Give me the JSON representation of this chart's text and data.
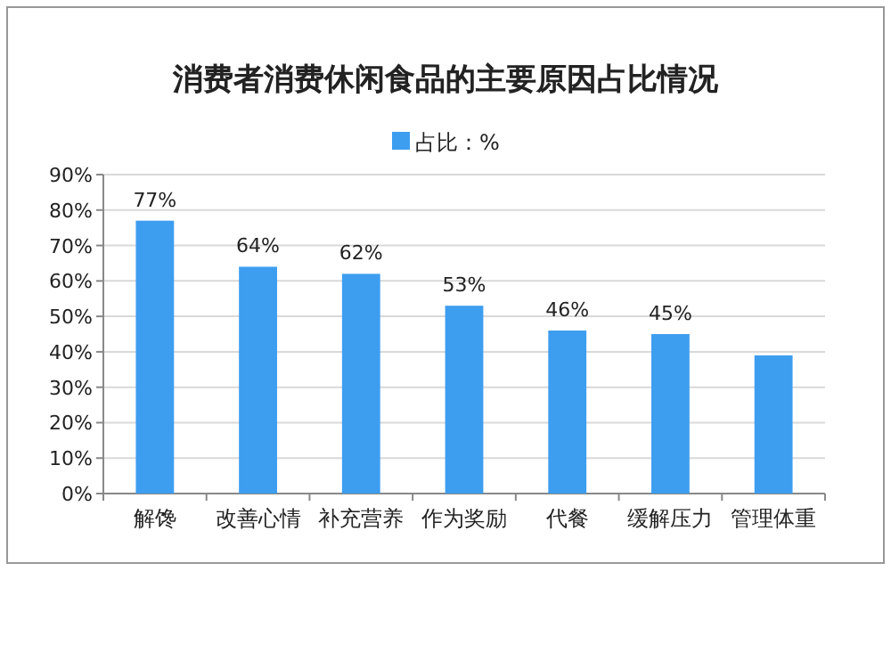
{
  "chart_data": {
    "type": "bar",
    "title": "消费者消费休闲食品的主要原因占比情况",
    "categories": [
      "解馋",
      "改善心情",
      "补充营养",
      "作为奖励",
      "代餐",
      "缓解压力",
      "管理体重"
    ],
    "series": [
      {
        "name": "占比：%",
        "color": "#3d9ef0",
        "values": [
          77,
          64,
          62,
          53,
          46,
          45,
          39
        ],
        "value_labels": [
          "77%",
          "64%",
          "62%",
          "53%",
          "46%",
          "45%",
          null
        ]
      }
    ],
    "ylim": [
      0,
      90
    ],
    "yticks": [
      {
        "value": 0,
        "label": "0%"
      },
      {
        "value": 10,
        "label": "10%"
      },
      {
        "value": 20,
        "label": "20%"
      },
      {
        "value": 30,
        "label": "30%"
      },
      {
        "value": 40,
        "label": "40%"
      },
      {
        "value": 50,
        "label": "50%"
      },
      {
        "value": 60,
        "label": "60%"
      },
      {
        "value": 70,
        "label": "70%"
      },
      {
        "value": 80,
        "label": "80%"
      },
      {
        "value": 90,
        "label": "90%"
      }
    ],
    "grid": "y",
    "legend": "top"
  }
}
